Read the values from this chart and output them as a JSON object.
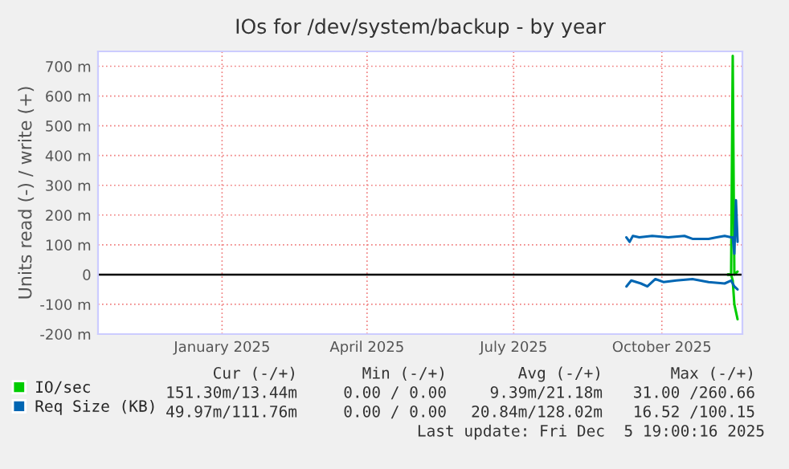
{
  "chart_data": {
    "type": "line",
    "title": "IOs for /dev/system/backup - by year",
    "ylabel": "Units read (-) / write (+)",
    "xlim": [
      "2024-10-31",
      "2025-12-05"
    ],
    "xticks": [
      {
        "value": "2025-01-16",
        "label": "January 2025"
      },
      {
        "value": "2025-04-16",
        "label": "April 2025"
      },
      {
        "value": "2025-07-16",
        "label": "July 2025"
      },
      {
        "value": "2025-10-16",
        "label": "October 2025"
      }
    ],
    "ylim": [
      -200,
      750
    ],
    "yticks": [
      {
        "value": -200,
        "label": "-200 m"
      },
      {
        "value": -100,
        "label": "-100 m"
      },
      0,
      {
        "value": 100,
        "label": "100 m"
      },
      {
        "value": 200,
        "label": "200 m"
      },
      {
        "value": 300,
        "label": "300 m"
      },
      {
        "value": 400,
        "label": "400 m"
      },
      {
        "value": 500,
        "label": "500 m"
      },
      {
        "value": 600,
        "label": "600 m"
      },
      {
        "value": 700,
        "label": "700 m"
      }
    ],
    "grid": true,
    "legend": "bottom",
    "ref_lines": [
      {
        "axis": "y",
        "value": 0,
        "color": "#000000"
      }
    ],
    "series": [
      {
        "name": "IO/sec",
        "color": "#00cc00",
        "x": [
          "2025-11-26",
          "2025-11-28",
          "2025-11-29",
          "2025-11-30",
          "2025-12-02"
        ],
        "values": [
          0,
          0,
          735,
          0,
          10
        ]
      },
      {
        "color": "#00cc00",
        "x": [
          "2025-11-26",
          "2025-11-28",
          "2025-11-29",
          "2025-11-30",
          "2025-12-02"
        ],
        "values": [
          0,
          0,
          -20,
          -100,
          -150
        ]
      },
      {
        "name": "Req Size (KB)",
        "color": "#0066b3",
        "x": [
          "2025-09-24",
          "2025-09-26",
          "2025-09-28",
          "2025-10-02",
          "2025-10-10",
          "2025-10-20",
          "2025-10-30",
          "2025-11-04",
          "2025-11-14",
          "2025-11-19",
          "2025-11-24",
          "2025-11-28",
          "2025-11-29",
          "2025-11-30",
          "2025-12-01",
          "2025-12-02"
        ],
        "values": [
          125,
          110,
          130,
          125,
          130,
          125,
          130,
          120,
          120,
          125,
          130,
          125,
          125,
          70,
          250,
          110
        ]
      },
      {
        "color": "#0066b3",
        "x": [
          "2025-09-24",
          "2025-09-27",
          "2025-10-03",
          "2025-10-07",
          "2025-10-12",
          "2025-10-17",
          "2025-10-25",
          "2025-11-04",
          "2025-11-14",
          "2025-11-24",
          "2025-11-28",
          "2025-11-30",
          "2025-12-02"
        ],
        "values": [
          -40,
          -20,
          -30,
          -40,
          -15,
          -25,
          -20,
          -15,
          -25,
          -30,
          -20,
          -40,
          -50
        ]
      }
    ],
    "annotations": [
      "Cur (-/+)",
      "Min (-/+)",
      "Avg (-/+)",
      "Max (-/+)",
      "151.30m/13.44m",
      "0.00 / 0.00",
      "9.39m/21.18m",
      "31.00 /260.66",
      "49.97m/111.76m",
      "0.00 / 0.00",
      "20.84m/128.02m",
      "16.52 /100.15",
      "Last update: Fri Dec  5 19:00:16 2025"
    ]
  }
}
